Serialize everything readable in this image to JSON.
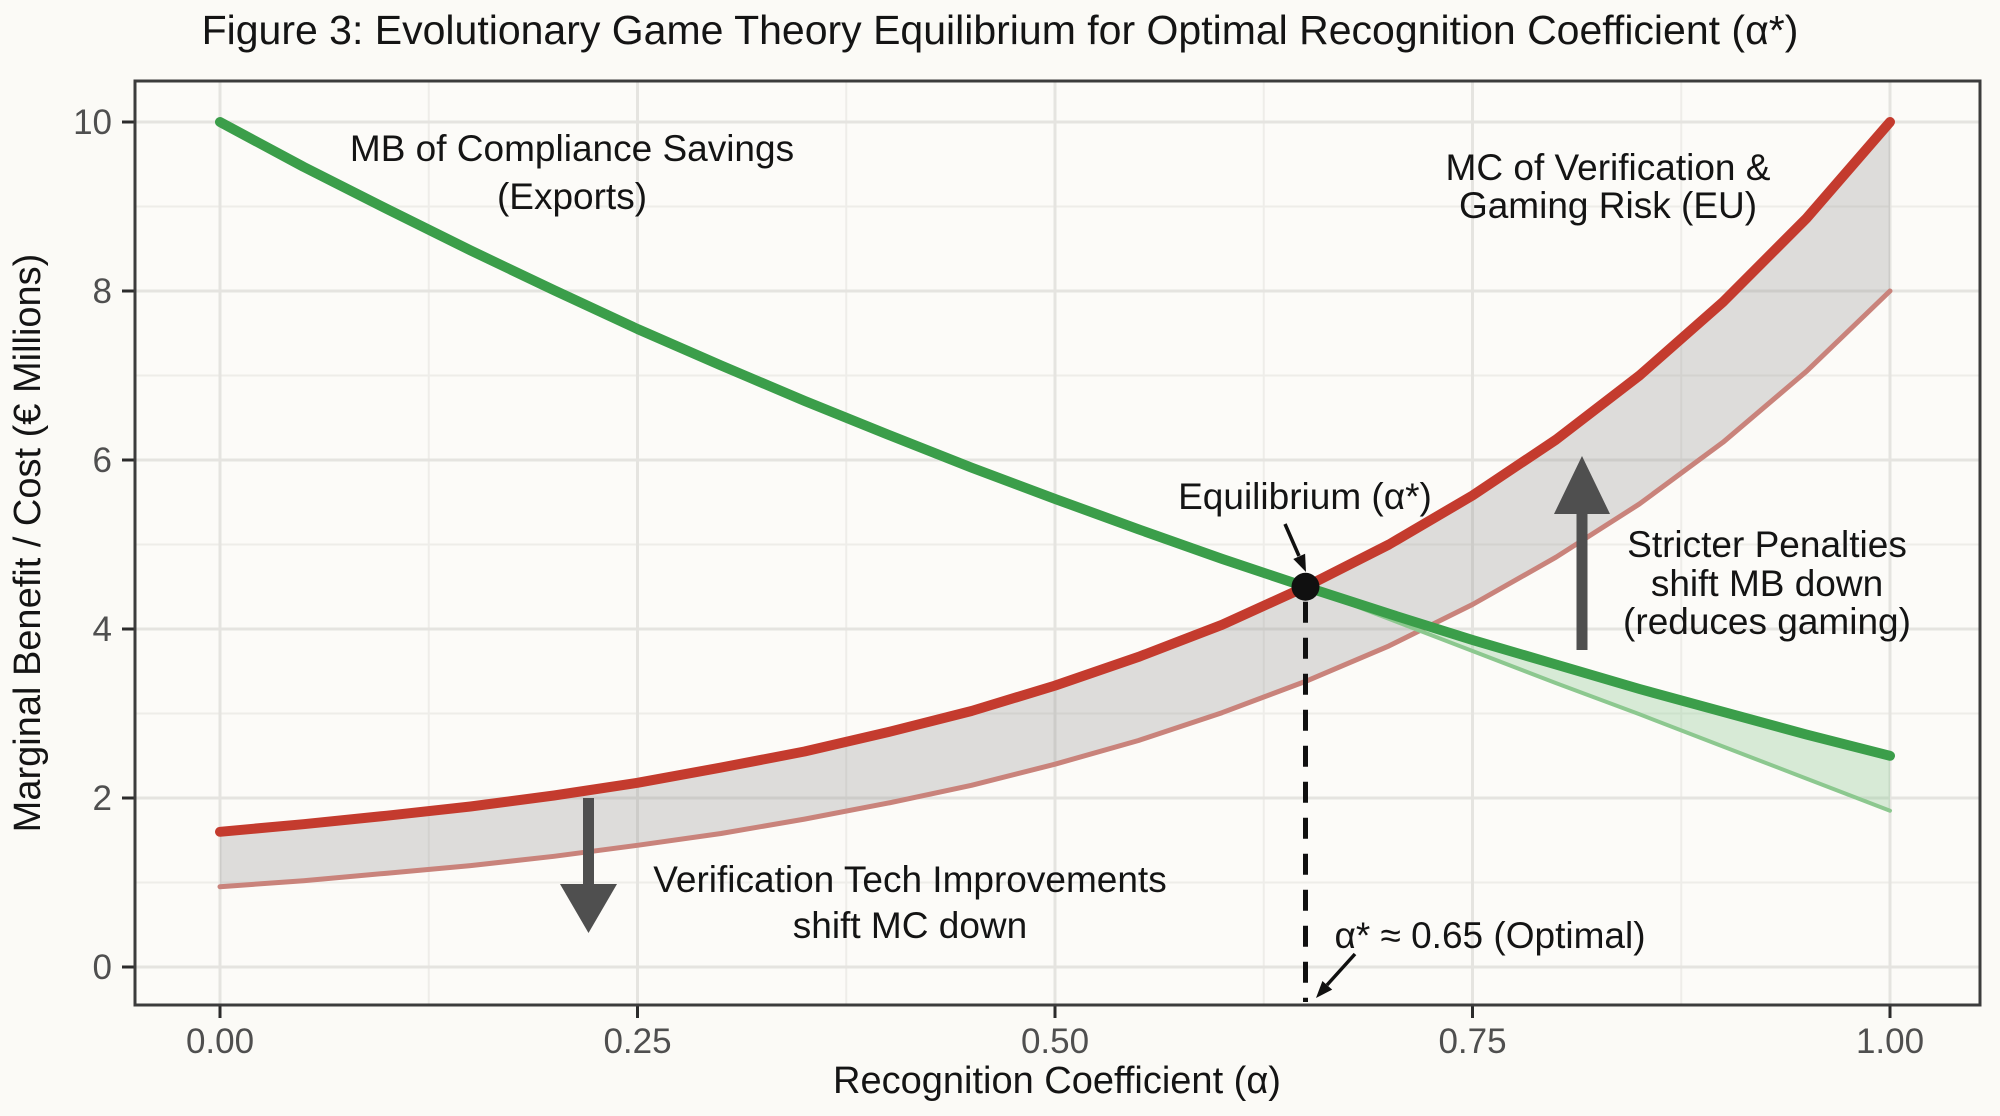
{
  "figure": {
    "title": "Figure 3: Evolutionary Game Theory Equilibrium for Optimal Recognition Coefficient (α*)"
  },
  "axes": {
    "x": {
      "label": "Recognition Coefficient (α)",
      "tick_labels": [
        "0.00",
        "0.25",
        "0.50",
        "0.75",
        "1.00"
      ],
      "range": [
        0,
        1
      ]
    },
    "y": {
      "label": "Marginal Benefit / Cost (€ Millions)",
      "tick_labels": [
        "0",
        "2",
        "4",
        "6",
        "8",
        "10"
      ],
      "range": [
        0,
        10
      ]
    }
  },
  "annotations": {
    "mb_label": {
      "lines": [
        "MB of Compliance Savings",
        "(Exports)"
      ]
    },
    "mc_label": {
      "lines": [
        "MC of Verification &",
        "Gaming Risk (EU)"
      ]
    },
    "equilibrium_label": "Equilibrium (α*)",
    "optimal_label": "α* ≈ 0.65 (Optimal)",
    "mc_shift_label": {
      "lines": [
        "Verification Tech Improvements",
        "shift MC down"
      ]
    },
    "mb_shift_label": {
      "lines": [
        "Stricter Penalties",
        "shift MB down",
        "(reduces gaming)"
      ]
    }
  },
  "colors": {
    "mb_curve": "#3b9e4a",
    "mc_curve": "#c43b2e",
    "mc_shifted_curve": "#c9837b",
    "mb_shifted_curve": "#8cc88f",
    "mc_band_fill": "rgba(150,150,150,0.30)",
    "mb_band_fill": "rgba(140,200,145,0.33)",
    "arrow": "#4f4f4f",
    "equilibrium_marker": "#101010",
    "grid_major": "#e5e4e0",
    "grid_minor": "#eeede9",
    "panel_border": "#3c3c3c"
  },
  "chart_data": {
    "type": "line",
    "title": "Figure 3: Evolutionary Game Theory Equilibrium for Optimal Recognition Coefficient (α*)",
    "xlabel": "Recognition Coefficient (α)",
    "ylabel": "Marginal Benefit / Cost (€ Millions)",
    "xlim": [
      0,
      1
    ],
    "ylim": [
      0,
      10
    ],
    "x_major_ticks": [
      0,
      0.25,
      0.5,
      0.75,
      1.0
    ],
    "x_minor_ticks": [
      0.125,
      0.375,
      0.625,
      0.875
    ],
    "y_major_ticks": [
      0,
      2,
      4,
      6,
      8,
      10
    ],
    "y_minor_ticks": [
      1,
      3,
      5,
      7,
      9
    ],
    "grid": true,
    "x": [
      0,
      0.05,
      0.1,
      0.15,
      0.2,
      0.25,
      0.3,
      0.35,
      0.4,
      0.45,
      0.5,
      0.55,
      0.6,
      0.65,
      0.7,
      0.75,
      0.8,
      0.85,
      0.9,
      0.95,
      1.0
    ],
    "series": [
      {
        "name": "MB of Compliance Savings (Exports)",
        "color": "#3b9e4a",
        "width": 10,
        "values": [
          10.0,
          9.47,
          8.97,
          8.48,
          8.01,
          7.55,
          7.12,
          6.7,
          6.3,
          5.91,
          5.54,
          5.18,
          4.83,
          4.5,
          4.18,
          3.87,
          3.58,
          3.29,
          3.02,
          2.75,
          2.5
        ]
      },
      {
        "name": "MC of Verification & Gaming Risk (EU)",
        "color": "#c43b2e",
        "width": 10,
        "values": [
          1.6,
          1.69,
          1.79,
          1.9,
          2.03,
          2.18,
          2.36,
          2.55,
          2.78,
          3.03,
          3.33,
          3.67,
          4.05,
          4.5,
          5.0,
          5.58,
          6.24,
          7.0,
          7.87,
          8.86,
          10.0
        ]
      },
      {
        "name": "MC shifted down by verification tech improvements",
        "color": "#c9837b",
        "width": 5,
        "values": [
          0.95,
          1.02,
          1.11,
          1.2,
          1.31,
          1.44,
          1.58,
          1.75,
          1.94,
          2.15,
          2.4,
          2.68,
          3.01,
          3.38,
          3.8,
          4.29,
          4.85,
          5.48,
          6.21,
          7.05,
          8.0
        ]
      },
      {
        "name": "MB shifted down by stricter penalties (reduces gaming)",
        "color": "#8cc88f",
        "width": 4,
        "x": [
          0.65,
          0.7,
          0.75,
          0.8,
          0.85,
          0.9,
          0.95,
          1.0
        ],
        "values": [
          4.5,
          4.12,
          3.74,
          3.36,
          2.99,
          2.61,
          2.23,
          1.85
        ]
      }
    ],
    "bands": [
      {
        "name": "mc-shift-band",
        "upper_series": 1,
        "lower_series": 2,
        "fill": "rgba(150,150,150,0.30)"
      },
      {
        "name": "mb-shift-band",
        "upper_series": 0,
        "lower_series": 3,
        "from_x": 0.65,
        "fill": "rgba(140,200,145,0.33)"
      }
    ],
    "equilibrium": {
      "alpha": 0.65,
      "value": 4.5,
      "label": "Equilibrium (α*)",
      "note": "α* ≈ 0.65 (Optimal)"
    },
    "legend_position": "none"
  }
}
